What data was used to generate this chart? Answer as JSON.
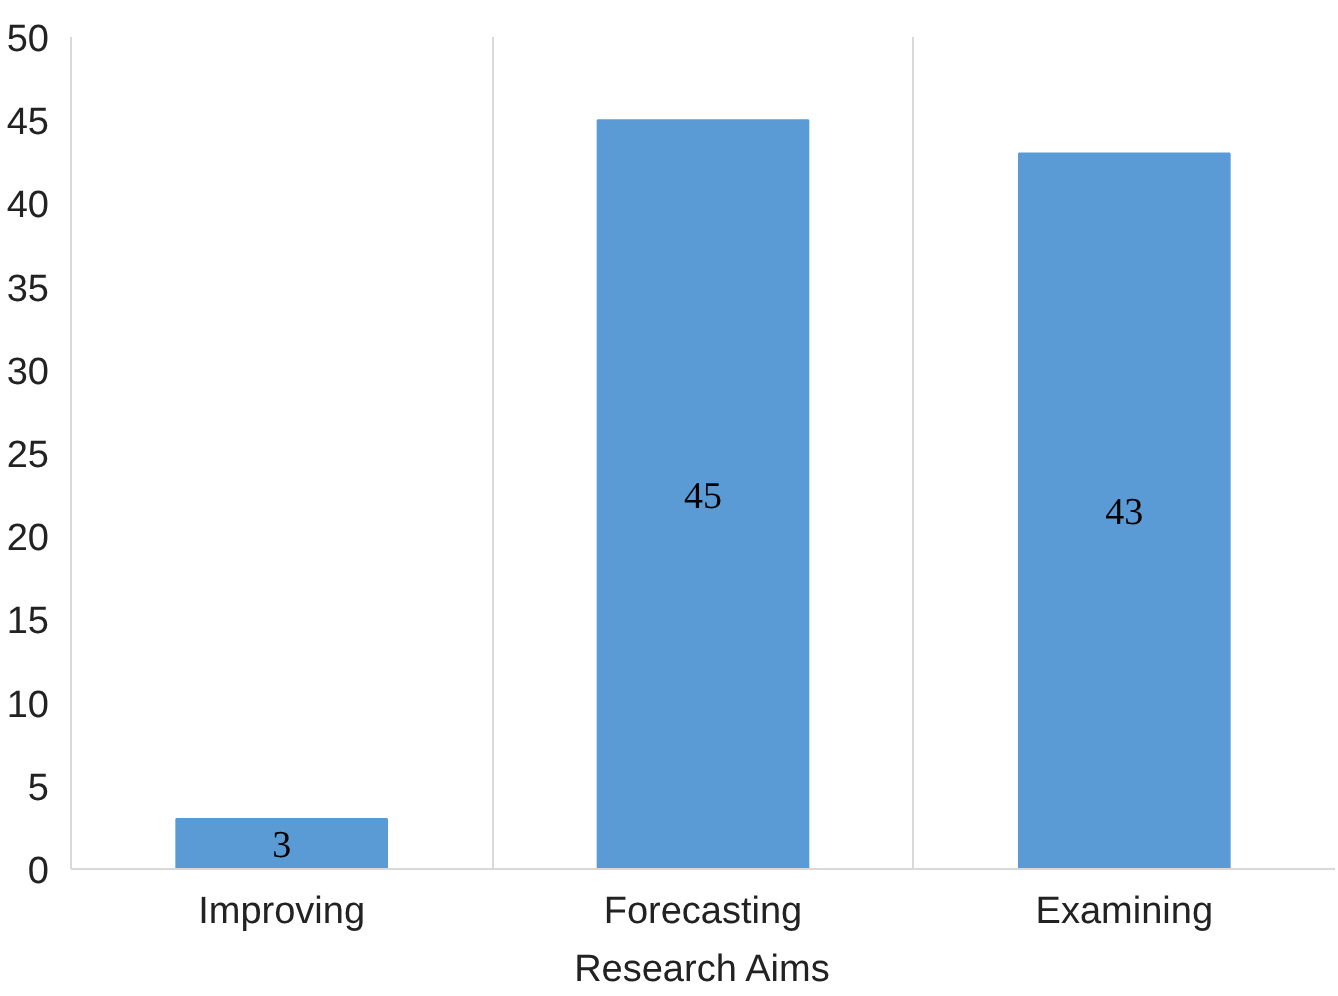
{
  "chart_data": {
    "type": "bar",
    "xlabel": "Research Aims",
    "categories": [
      "Improving",
      "Forecasting",
      "Examining"
    ],
    "values": [
      3,
      45,
      43
    ],
    "color": "#5b9bd5",
    "ylim": [
      0,
      50
    ],
    "yticks": [
      0,
      5,
      10,
      15,
      20,
      25,
      30,
      35,
      40,
      45,
      50
    ],
    "grid": "x",
    "data_labels": true
  }
}
